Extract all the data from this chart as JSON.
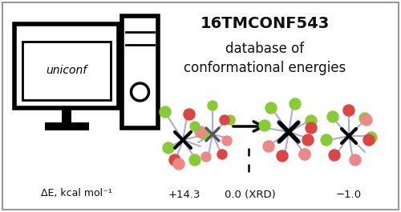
{
  "title_line1": "16TMCONF543",
  "title_line2": "database of",
  "title_line3": "conformational energies",
  "uniconff_label": "uniconf",
  "delta_e_label": "ΔE, kcal mol⁻¹",
  "value1": "+14.3",
  "value2": "0.0 (XRD)",
  "value3": "−1.0",
  "bg_color": "#ffffff",
  "border_color": "#999999",
  "text_color": "#111111",
  "arm_color": "#aaaadd",
  "green_color": "#88cc33",
  "red_color": "#dd4444",
  "pink_color": "#ee8888",
  "fig_width": 5.0,
  "fig_height": 2.65,
  "dpi": 100
}
